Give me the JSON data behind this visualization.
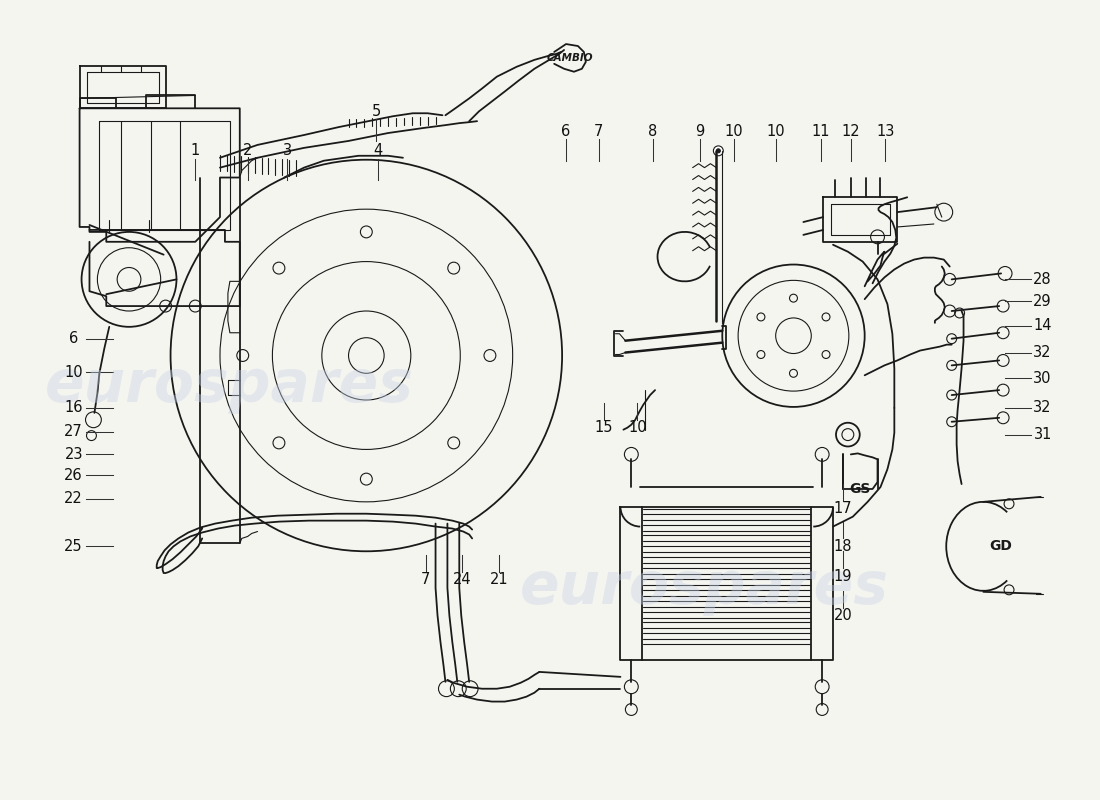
{
  "background_color": "#f5f5f0",
  "line_color": "#1a1a1a",
  "watermark_text1": "eurospares",
  "watermark_text2": "eurospares",
  "wm_color": "#c8d4e8",
  "wm_alpha": 0.4,
  "wm_fontsize": 42,
  "label_fontsize": 10.5,
  "label_color": "#111111",
  "top_labels": [
    [
      "1",
      185,
      148
    ],
    [
      "2",
      238,
      148
    ],
    [
      "3",
      278,
      148
    ],
    [
      "4",
      370,
      148
    ],
    [
      "5",
      368,
      108
    ],
    [
      "6",
      560,
      128
    ],
    [
      "7",
      593,
      128
    ],
    [
      "8",
      648,
      128
    ],
    [
      "9",
      695,
      128
    ],
    [
      "10",
      730,
      128
    ],
    [
      "10",
      772,
      128
    ],
    [
      "11",
      818,
      128
    ],
    [
      "12",
      848,
      128
    ],
    [
      "13",
      883,
      128
    ]
  ],
  "left_labels": [
    [
      "6",
      62,
      338
    ],
    [
      "10",
      62,
      372
    ],
    [
      "16",
      62,
      408
    ],
    [
      "27",
      62,
      432
    ],
    [
      "23",
      62,
      455
    ],
    [
      "26",
      62,
      476
    ],
    [
      "22",
      62,
      500
    ],
    [
      "25",
      62,
      548
    ]
  ],
  "right_labels": [
    [
      "28",
      1042,
      278
    ],
    [
      "29",
      1042,
      300
    ],
    [
      "14",
      1042,
      325
    ],
    [
      "32",
      1042,
      352
    ],
    [
      "30",
      1042,
      378
    ],
    [
      "32",
      1042,
      408
    ],
    [
      "31",
      1042,
      435
    ]
  ],
  "bottom_labels": [
    [
      "15",
      598,
      428
    ],
    [
      "10",
      632,
      428
    ],
    [
      "7",
      418,
      582
    ],
    [
      "24",
      455,
      582
    ],
    [
      "21",
      492,
      582
    ],
    [
      "17",
      840,
      510
    ],
    [
      "18",
      840,
      548
    ],
    [
      "19",
      840,
      578
    ],
    [
      "20",
      840,
      618
    ]
  ]
}
